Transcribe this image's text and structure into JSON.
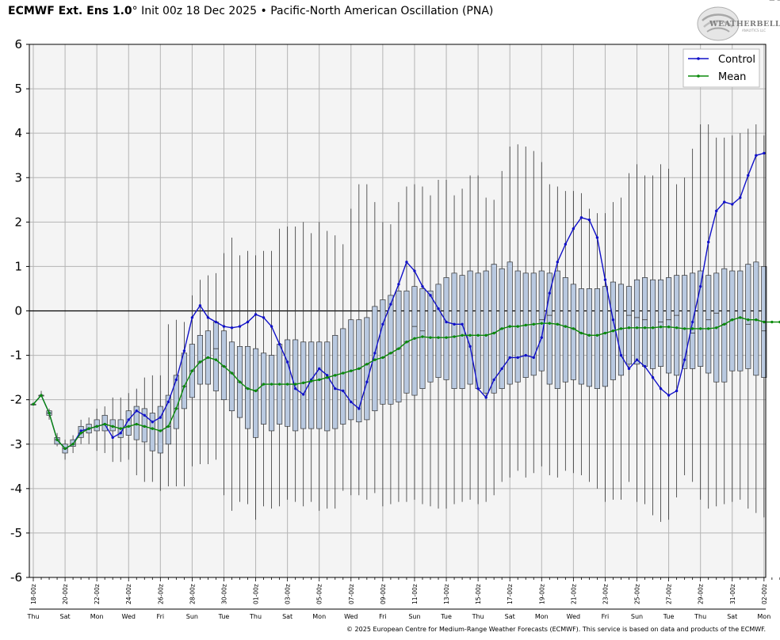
{
  "header": {
    "model": "ECMWF Ext.  Ens 1.0",
    "degree": "°",
    "init": " Init 00z 18 Dec 2025",
    "separator": " • ",
    "index_name": "Pacific-North American Oscillation (PNA)"
  },
  "logo": {
    "text": "WEATHERBELL",
    "subtext": "ANALYTICS LLC"
  },
  "footer": {
    "copyright": "© 2025 European Centre for Medium-Range Weather Forecasts (ECMWF). This service is based on data and products of the ECMWF."
  },
  "colors": {
    "control": "#1010c8",
    "mean": "#0a8a0a",
    "box_fill": "#b9c9e0",
    "plot_bg": "#f4f4f4",
    "grid": "#b4b4b4"
  },
  "chart_data": {
    "type": "box",
    "ylim": [
      -6,
      6
    ],
    "yticks": [
      -6,
      -5,
      -4,
      -3,
      -2,
      -1,
      0,
      1,
      2,
      3,
      4,
      5,
      6
    ],
    "grid": true,
    "legend_position": "top-right",
    "x_step_hours": 12,
    "x_tick_labels": [
      "18-00z",
      "20-00z",
      "22-00z",
      "24-00z",
      "26-00z",
      "28-00z",
      "30-00z",
      "01-00z",
      "03-00z",
      "05-00z",
      "07-00z",
      "09-00z",
      "11-00z",
      "13-00z",
      "15-00z",
      "17-00z",
      "19-00z",
      "21-00z",
      "23-00z",
      "25-00z",
      "27-00z",
      "29-00z",
      "31-00z",
      "02-00z"
    ],
    "x_day_labels": [
      "Thu",
      "Sat",
      "Mon",
      "Wed",
      "Fri",
      "Sun",
      "Tue",
      "Thu",
      "Sat",
      "Mon",
      "Wed",
      "Fri",
      "Sun",
      "Tue",
      "Thu",
      "Sat",
      "Mon",
      "Wed",
      "Fri",
      "Sun",
      "Tue",
      "Thu",
      "Sat",
      "Mon"
    ],
    "series": [
      {
        "name": "Control",
        "values": [
          -2.1,
          -1.9,
          -2.3,
          -2.9,
          -3.1,
          -3.0,
          -2.7,
          -2.65,
          -2.6,
          -2.55,
          -2.85,
          -2.75,
          -2.45,
          -2.25,
          -2.35,
          -2.5,
          -2.4,
          -2.05,
          -1.55,
          -0.9,
          -0.15,
          0.12,
          -0.15,
          -0.25,
          -0.35,
          -0.38,
          -0.35,
          -0.25,
          -0.08,
          -0.15,
          -0.35,
          -0.75,
          -1.15,
          -1.75,
          -1.88,
          -1.55,
          -1.3,
          -1.45,
          -1.75,
          -1.8,
          -2.05,
          -2.2,
          -1.6,
          -0.95,
          -0.3,
          0.15,
          0.6,
          1.1,
          0.9,
          0.55,
          0.35,
          0.05,
          -0.25,
          -0.3,
          -0.3,
          -0.8,
          -1.75,
          -1.95,
          -1.55,
          -1.3,
          -1.05,
          -1.05,
          -1.0,
          -1.05,
          -0.6,
          0.4,
          1.1,
          1.5,
          1.85,
          2.1,
          2.05,
          1.65,
          0.7,
          -0.2,
          -1.0,
          -1.3,
          -1.1,
          -1.25,
          -1.5,
          -1.75,
          -1.9,
          -1.8,
          -1.1,
          -0.25,
          0.55,
          1.55,
          2.25,
          2.45,
          2.4,
          2.55,
          3.05,
          3.5,
          3.55
        ]
      },
      {
        "name": "Mean",
        "values": [
          -2.1,
          -1.9,
          -2.3,
          -2.9,
          -3.1,
          -3.0,
          -2.75,
          -2.65,
          -2.6,
          -2.55,
          -2.6,
          -2.65,
          -2.6,
          -2.55,
          -2.6,
          -2.65,
          -2.7,
          -2.6,
          -2.2,
          -1.7,
          -1.35,
          -1.15,
          -1.05,
          -1.1,
          -1.25,
          -1.4,
          -1.6,
          -1.75,
          -1.8,
          -1.65,
          -1.65,
          -1.65,
          -1.65,
          -1.65,
          -1.62,
          -1.58,
          -1.55,
          -1.5,
          -1.45,
          -1.4,
          -1.35,
          -1.3,
          -1.2,
          -1.1,
          -1.05,
          -0.95,
          -0.85,
          -0.7,
          -0.62,
          -0.58,
          -0.6,
          -0.6,
          -0.6,
          -0.58,
          -0.55,
          -0.55,
          -0.55,
          -0.55,
          -0.5,
          -0.4,
          -0.35,
          -0.35,
          -0.32,
          -0.3,
          -0.28,
          -0.28,
          -0.3,
          -0.35,
          -0.4,
          -0.5,
          -0.55,
          -0.55,
          -0.5,
          -0.45,
          -0.4,
          -0.38,
          -0.38,
          -0.38,
          -0.38,
          -0.36,
          -0.36,
          -0.38,
          -0.4,
          -0.4,
          -0.4,
          -0.4,
          -0.38,
          -0.3,
          -0.2,
          -0.15,
          -0.2,
          -0.2,
          -0.25,
          -0.25,
          -0.25
        ]
      }
    ],
    "boxes": {
      "q1": [
        -2.1,
        -1.9,
        -2.35,
        -3.0,
        -3.2,
        -3.05,
        -2.85,
        -2.75,
        -2.7,
        -2.7,
        -2.7,
        -2.85,
        -2.8,
        -2.9,
        -2.95,
        -3.15,
        -3.2,
        -3.0,
        -2.65,
        -2.2,
        -1.95,
        -1.65,
        -1.65,
        -1.8,
        -2.0,
        -2.25,
        -2.4,
        -2.65,
        -2.85,
        -2.55,
        -2.7,
        -2.55,
        -2.6,
        -2.7,
        -2.65,
        -2.65,
        -2.65,
        -2.7,
        -2.65,
        -2.55,
        -2.45,
        -2.5,
        -2.45,
        -2.25,
        -2.1,
        -2.1,
        -2.05,
        -1.85,
        -1.9,
        -1.75,
        -1.6,
        -1.5,
        -1.55,
        -1.75,
        -1.75,
        -1.65,
        -1.75,
        -1.85,
        -1.85,
        -1.75,
        -1.65,
        -1.6,
        -1.5,
        -1.45,
        -1.35,
        -1.65,
        -1.75,
        -1.6,
        -1.55,
        -1.65,
        -1.7,
        -1.75,
        -1.7,
        -1.55,
        -1.45,
        -1.2,
        -1.2,
        -1.25,
        -1.3,
        -1.25,
        -1.4,
        -1.45,
        -1.3,
        -1.3,
        -1.25,
        -1.4,
        -1.6,
        -1.6,
        -1.35,
        -1.35,
        -1.3,
        -1.45,
        -1.5,
        -1.45,
        -1.4
      ],
      "q3": [
        -2.1,
        -1.9,
        -2.25,
        -2.85,
        -3.0,
        -2.9,
        -2.6,
        -2.55,
        -2.45,
        -2.35,
        -2.45,
        -2.45,
        -2.25,
        -2.15,
        -2.2,
        -2.3,
        -2.15,
        -1.9,
        -1.45,
        -0.95,
        -0.75,
        -0.55,
        -0.45,
        -0.25,
        -0.45,
        -0.7,
        -0.8,
        -0.8,
        -0.85,
        -0.95,
        -1.0,
        -0.75,
        -0.65,
        -0.65,
        -0.7,
        -0.7,
        -0.7,
        -0.7,
        -0.55,
        -0.4,
        -0.2,
        -0.2,
        -0.15,
        0.1,
        0.25,
        0.35,
        0.45,
        0.45,
        0.55,
        0.5,
        0.45,
        0.6,
        0.75,
        0.85,
        0.8,
        0.9,
        0.85,
        0.9,
        1.05,
        0.95,
        1.1,
        0.9,
        0.85,
        0.85,
        0.9,
        0.85,
        0.9,
        0.75,
        0.6,
        0.5,
        0.5,
        0.5,
        0.55,
        0.65,
        0.6,
        0.55,
        0.7,
        0.75,
        0.7,
        0.7,
        0.75,
        0.8,
        0.8,
        0.85,
        0.9,
        0.8,
        0.85,
        0.95,
        0.9,
        0.9,
        1.05,
        1.1,
        1.0
      ],
      "median": [
        -2.1,
        -1.9,
        -2.3,
        -2.9,
        -3.1,
        -3.0,
        -2.75,
        -2.65,
        -2.6,
        -2.55,
        -2.6,
        -2.65,
        -2.6,
        -2.55,
        -2.6,
        -2.65,
        -2.7,
        -2.6,
        -2.2,
        -1.7,
        -1.35,
        -1.15,
        -1.05,
        -0.85,
        -1.25,
        -1.4,
        -1.6,
        -1.75,
        -1.8,
        -1.65,
        -1.65,
        -1.65,
        -1.65,
        -1.65,
        -1.62,
        -1.58,
        -1.55,
        -1.5,
        -1.45,
        -1.4,
        -1.35,
        -1.3,
        -1.2,
        -1.1,
        -1.05,
        -0.95,
        -0.85,
        -0.7,
        -0.35,
        -0.45,
        -0.6,
        -0.6,
        -0.6,
        -0.58,
        -0.55,
        -0.55,
        -0.55,
        -0.55,
        -0.5,
        -0.4,
        -0.35,
        -0.35,
        -0.32,
        -0.3,
        -0.2,
        -0.1,
        -0.3,
        -0.35,
        -0.4,
        -0.5,
        -0.55,
        -0.55,
        -0.5,
        -0.45,
        -0.4,
        -0.1,
        -0.15,
        -0.2,
        -0.38,
        -0.25,
        -0.2,
        -0.1,
        -0.4,
        -0.5,
        -0.4,
        -0.2,
        -0.05,
        -0.3,
        -0.2,
        -0.15,
        -0.3,
        -0.2,
        -0.45
      ],
      "min": [
        -2.1,
        -1.9,
        -2.45,
        -3.05,
        -3.35,
        -3.2,
        -3.0,
        -3.0,
        -3.15,
        -3.2,
        -3.4,
        -3.4,
        -3.35,
        -3.7,
        -3.85,
        -3.85,
        -4.05,
        -3.95,
        -3.95,
        -3.95,
        -3.5,
        -3.45,
        -3.45,
        -3.35,
        -4.15,
        -4.5,
        -4.3,
        -4.35,
        -4.7,
        -4.4,
        -4.45,
        -4.4,
        -4.25,
        -4.3,
        -4.4,
        -4.3,
        -4.5,
        -4.45,
        -4.45,
        -4.05,
        -4.15,
        -4.15,
        -4.25,
        -4.1,
        -4.4,
        -4.35,
        -4.3,
        -4.3,
        -4.25,
        -4.35,
        -4.4,
        -4.45,
        -4.45,
        -4.35,
        -4.3,
        -4.25,
        -4.35,
        -4.3,
        -4.15,
        -3.85,
        -3.75,
        -3.6,
        -3.75,
        -3.65,
        -3.5,
        -3.7,
        -3.75,
        -3.6,
        -3.65,
        -3.7,
        -3.85,
        -4.0,
        -4.3,
        -4.25,
        -4.25,
        -3.85,
        -4.3,
        -4.35,
        -4.6,
        -4.75,
        -4.7,
        -4.2,
        -3.7,
        -3.85,
        -4.25,
        -4.45,
        -4.4,
        -4.35,
        -4.3,
        -4.25,
        -4.45,
        -4.55,
        -4.65
      ],
      "max": [
        -2.1,
        -1.8,
        -2.2,
        -2.75,
        -2.9,
        -2.8,
        -2.45,
        -2.4,
        -2.2,
        -2.15,
        -1.95,
        -1.95,
        -1.85,
        -1.75,
        -1.5,
        -1.45,
        -1.45,
        -0.3,
        -0.2,
        -0.25,
        0.35,
        0.7,
        0.8,
        0.85,
        1.3,
        1.65,
        1.25,
        1.35,
        1.25,
        1.35,
        1.35,
        1.85,
        1.9,
        1.9,
        2.0,
        1.75,
        2.0,
        1.8,
        1.7,
        1.5,
        2.3,
        2.85,
        2.85,
        2.45,
        2.0,
        1.95,
        2.45,
        2.8,
        2.85,
        2.8,
        2.6,
        2.95,
        2.95,
        2.6,
        2.75,
        3.05,
        3.05,
        2.55,
        2.5,
        3.15,
        3.7,
        3.75,
        3.7,
        3.6,
        3.35,
        2.85,
        2.8,
        2.7,
        2.7,
        2.65,
        2.3,
        2.2,
        2.2,
        2.45,
        2.55,
        3.1,
        3.3,
        3.05,
        3.05,
        3.3,
        3.2,
        2.85,
        3.0,
        3.65,
        4.2,
        4.2,
        3.9,
        3.9,
        3.95,
        4.0,
        4.1,
        4.2,
        3.95
      ]
    }
  }
}
